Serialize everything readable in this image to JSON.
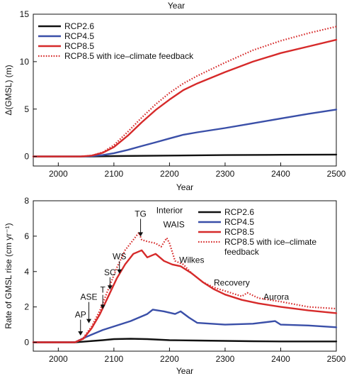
{
  "chart_data": [
    {
      "type": "line",
      "title": "",
      "xlabel_top": "Year",
      "xlabel": "Year",
      "ylabel": "Δ(GMSL) (m)",
      "xlim": [
        1955,
        2500
      ],
      "ylim": [
        -1,
        15
      ],
      "xticks": [
        2000,
        2100,
        2200,
        2300,
        2400,
        2500
      ],
      "yticks": [
        0,
        5,
        10,
        15
      ],
      "grid": false,
      "legend_position": "top-left",
      "series": [
        {
          "name": "RCP2.6",
          "color": "#111111",
          "dash": "solid",
          "x": [
            1955,
            2000,
            2050,
            2100,
            2200,
            2300,
            2400,
            2500
          ],
          "y": [
            0,
            0,
            0,
            0.05,
            0.1,
            0.15,
            0.18,
            0.2
          ]
        },
        {
          "name": "RCP4.5",
          "color": "#3a4fa8",
          "dash": "solid",
          "x": [
            1955,
            2000,
            2040,
            2060,
            2080,
            2100,
            2125,
            2150,
            2175,
            2200,
            2225,
            2250,
            2300,
            2350,
            2400,
            2450,
            2500
          ],
          "y": [
            0,
            0,
            0,
            0.05,
            0.15,
            0.35,
            0.7,
            1.1,
            1.5,
            1.9,
            2.3,
            2.55,
            3.0,
            3.5,
            4.0,
            4.5,
            4.95
          ]
        },
        {
          "name": "RCP8.5",
          "color": "#d62a2a",
          "dash": "solid",
          "x": [
            1955,
            2000,
            2040,
            2060,
            2080,
            2100,
            2125,
            2150,
            2175,
            2200,
            2225,
            2250,
            2300,
            2350,
            2400,
            2450,
            2500
          ],
          "y": [
            0,
            0,
            0,
            0.1,
            0.4,
            1.0,
            2.2,
            3.6,
            4.9,
            6.0,
            7.0,
            7.7,
            8.9,
            10.0,
            10.9,
            11.6,
            12.3
          ]
        },
        {
          "name": "RCP8.5 with ice–climate feedback",
          "color": "#d62a2a",
          "dash": "dotted",
          "x": [
            1955,
            2000,
            2040,
            2060,
            2080,
            2100,
            2125,
            2150,
            2175,
            2200,
            2225,
            2250,
            2300,
            2350,
            2400,
            2450,
            2500
          ],
          "y": [
            0,
            0,
            0,
            0.1,
            0.45,
            1.2,
            2.6,
            4.1,
            5.5,
            6.7,
            7.7,
            8.5,
            9.9,
            11.2,
            12.2,
            13.0,
            13.7
          ]
        }
      ]
    },
    {
      "type": "line",
      "title": "",
      "xlabel": "Year",
      "ylabel": "Rate of GMSL rise (cm yr⁻¹)",
      "xlim": [
        1955,
        2500
      ],
      "ylim": [
        -0.5,
        8
      ],
      "xticks": [
        2000,
        2100,
        2200,
        2300,
        2400,
        2500
      ],
      "yticks": [
        0,
        2,
        4,
        6,
        8
      ],
      "grid": false,
      "legend_position": "top-right",
      "series": [
        {
          "name": "RCP2.6",
          "color": "#111111",
          "dash": "solid",
          "x": [
            1955,
            2000,
            2030,
            2050,
            2080,
            2100,
            2130,
            2160,
            2200,
            2250,
            2300,
            2350,
            2400,
            2450,
            2500
          ],
          "y": [
            0,
            0,
            0,
            0.05,
            0.12,
            0.18,
            0.2,
            0.18,
            0.12,
            0.1,
            0.08,
            0.06,
            0.05,
            0.05,
            0.05
          ]
        },
        {
          "name": "RCP4.5",
          "color": "#3a4fa8",
          "dash": "solid",
          "x": [
            1955,
            2000,
            2030,
            2050,
            2080,
            2100,
            2130,
            2160,
            2170,
            2190,
            2210,
            2220,
            2235,
            2250,
            2300,
            2350,
            2390,
            2400,
            2450,
            2500
          ],
          "y": [
            0,
            0,
            0,
            0.3,
            0.7,
            0.9,
            1.2,
            1.6,
            1.85,
            1.75,
            1.6,
            1.75,
            1.4,
            1.1,
            1.0,
            1.05,
            1.2,
            1.0,
            0.95,
            0.85
          ]
        },
        {
          "name": "RCP8.5",
          "color": "#d62a2a",
          "dash": "solid",
          "x": [
            1955,
            2000,
            2030,
            2045,
            2060,
            2075,
            2090,
            2105,
            2120,
            2135,
            2150,
            2160,
            2175,
            2190,
            2205,
            2220,
            2240,
            2260,
            2280,
            2300,
            2330,
            2360,
            2400,
            2450,
            2500
          ],
          "y": [
            0,
            0,
            0,
            0.2,
            0.8,
            1.6,
            2.6,
            3.6,
            4.4,
            5.0,
            5.2,
            4.8,
            5.0,
            4.6,
            4.4,
            4.3,
            3.9,
            3.4,
            3.0,
            2.7,
            2.4,
            2.2,
            2.0,
            1.8,
            1.65
          ]
        },
        {
          "name": "RCP8.5 with ice–climate feedback",
          "color": "#d62a2a",
          "dash": "dotted",
          "x": [
            1955,
            2000,
            2030,
            2045,
            2060,
            2075,
            2090,
            2105,
            2120,
            2135,
            2145,
            2150,
            2160,
            2175,
            2185,
            2195,
            2200,
            2210,
            2225,
            2240,
            2260,
            2280,
            2300,
            2330,
            2340,
            2360,
            2400,
            2450,
            2500
          ],
          "y": [
            0,
            0,
            0,
            0.25,
            0.9,
            1.8,
            3.0,
            4.2,
            5.2,
            5.8,
            6.2,
            5.8,
            5.7,
            5.6,
            5.4,
            5.9,
            5.6,
            4.6,
            4.4,
            3.9,
            3.4,
            3.1,
            2.9,
            2.6,
            2.8,
            2.5,
            2.3,
            2.0,
            1.9
          ]
        }
      ],
      "annotations": [
        {
          "label": "AP",
          "x": 2040,
          "y": 0.3,
          "arrow": true,
          "label_y": 1.4
        },
        {
          "label": "ASE",
          "x": 2055,
          "y": 1.0,
          "arrow": true,
          "label_y": 2.4
        },
        {
          "label": "T",
          "x": 2080,
          "y": 1.8,
          "arrow": true,
          "label_y": 2.8
        },
        {
          "label": "SC",
          "x": 2093,
          "y": 2.9,
          "arrow": true,
          "label_y": 3.8
        },
        {
          "label": "WS",
          "x": 2110,
          "y": 3.8,
          "arrow": true,
          "label_y": 4.7
        },
        {
          "label": "TG",
          "x": 2148,
          "y": 5.9,
          "arrow": true,
          "label_y": 7.1
        },
        {
          "label": "Interior",
          "x": 2200,
          "y": 0,
          "arrow": false,
          "label_y": 7.3
        },
        {
          "label": "WAIS",
          "x": 2208,
          "y": 0,
          "arrow": false,
          "label_y": 6.5
        },
        {
          "label": "Wilkes",
          "x": 2240,
          "y": 0,
          "arrow": false,
          "label_y": 4.5
        },
        {
          "label": "Recovery",
          "x": 2312,
          "y": 0,
          "arrow": false,
          "label_y": 3.2
        },
        {
          "label": "Aurora",
          "x": 2392,
          "y": 0,
          "arrow": false,
          "label_y": 2.4
        }
      ]
    }
  ]
}
